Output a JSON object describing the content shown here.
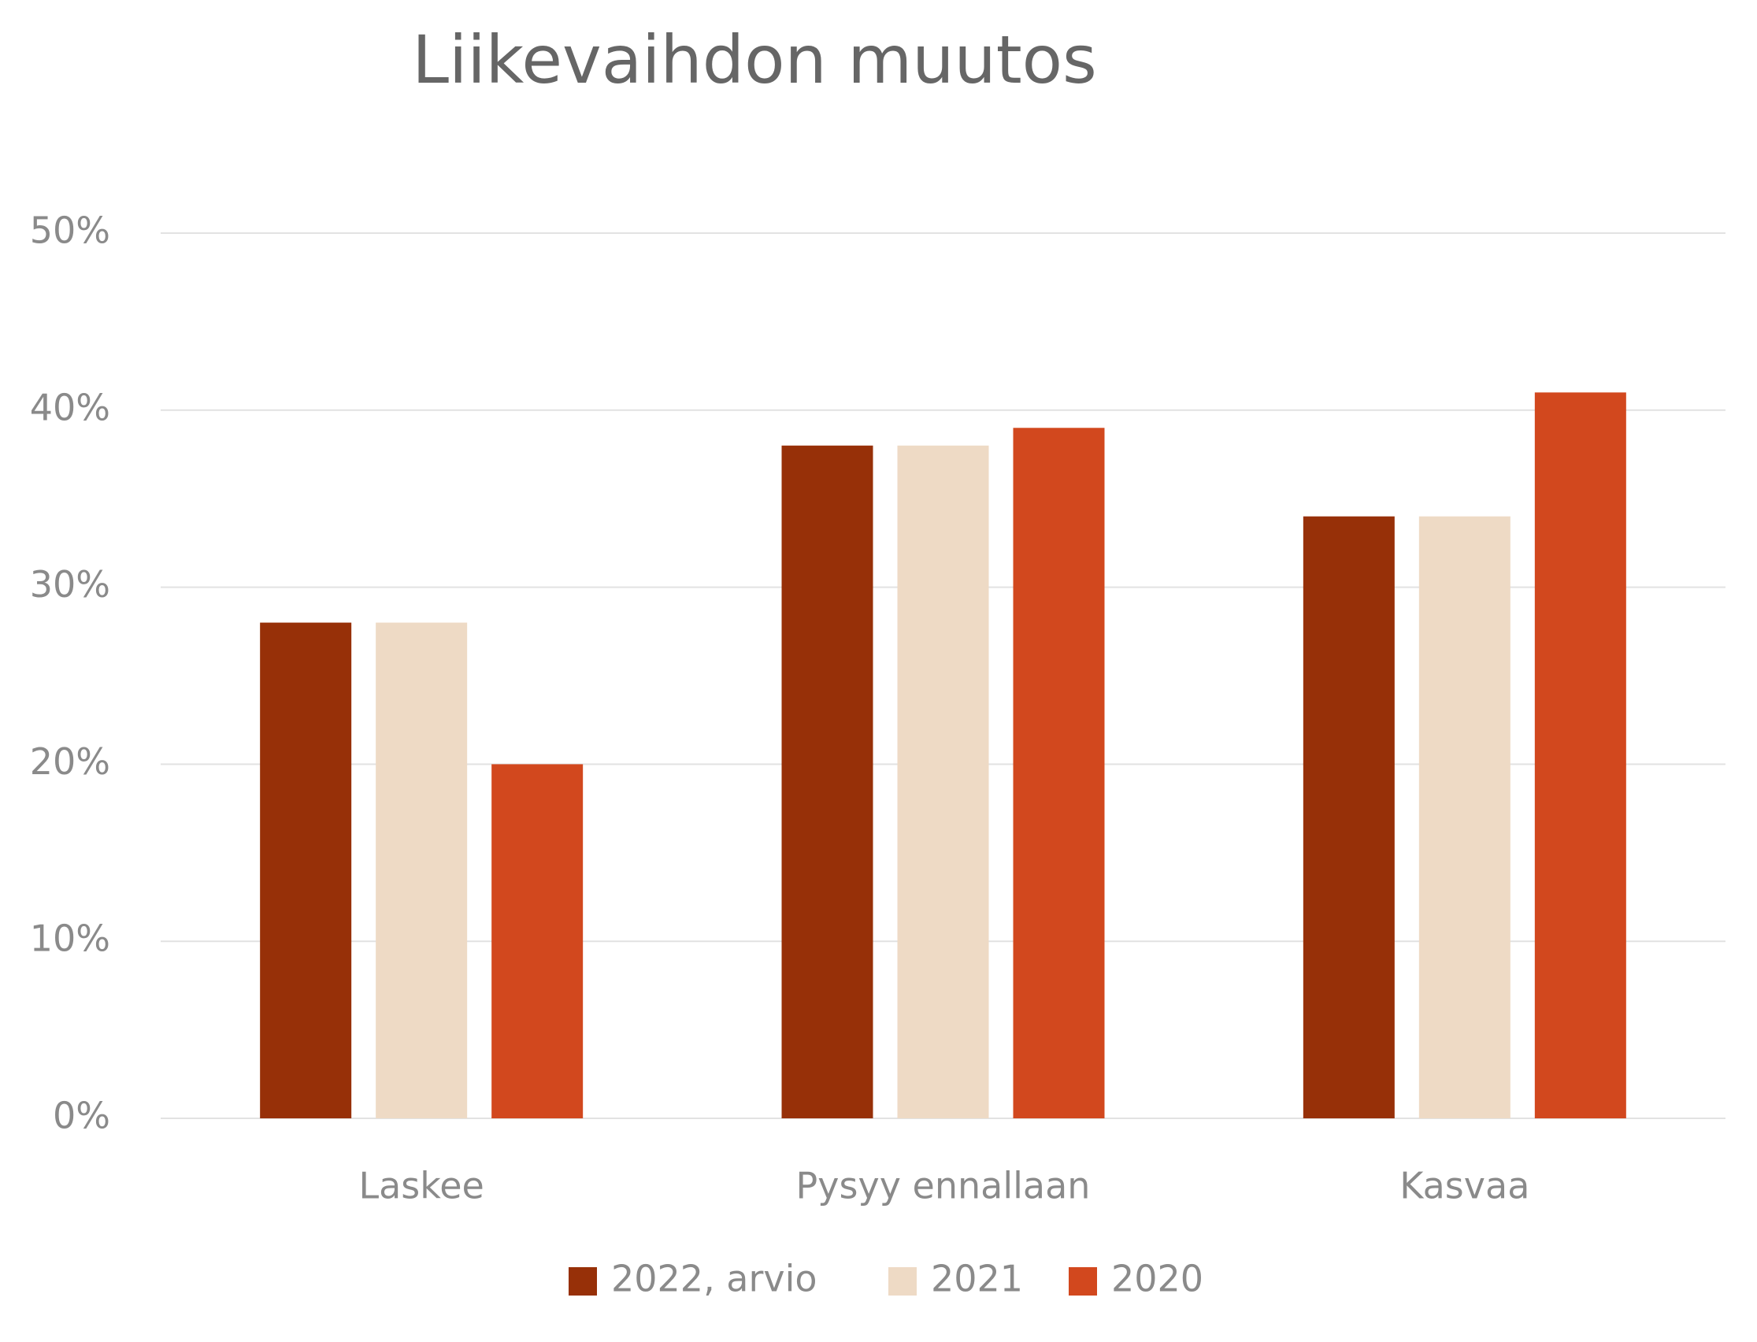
{
  "chart_data": {
    "type": "bar",
    "title": "Liikevaihdon muutos",
    "categories": [
      "Laskee",
      "Pysyy ennallaan",
      "Kasvaa"
    ],
    "series": [
      {
        "name": "2022, arvio",
        "color": "#973008",
        "values": [
          28,
          38,
          34
        ]
      },
      {
        "name": "2021",
        "color": "#eedac5",
        "values": [
          28,
          38,
          34
        ]
      },
      {
        "name": "2020",
        "color": "#d2481e",
        "values": [
          20,
          39,
          41
        ]
      }
    ],
    "ylim": [
      0,
      50
    ],
    "yticks": [
      {
        "value": 0,
        "label": "0%"
      },
      {
        "value": 10,
        "label": "10%"
      },
      {
        "value": 20,
        "label": "20%"
      },
      {
        "value": 30,
        "label": "30%"
      },
      {
        "value": 40,
        "label": "40%"
      },
      {
        "value": 50,
        "label": "50%"
      }
    ],
    "grid": true,
    "legend": "bottom"
  }
}
